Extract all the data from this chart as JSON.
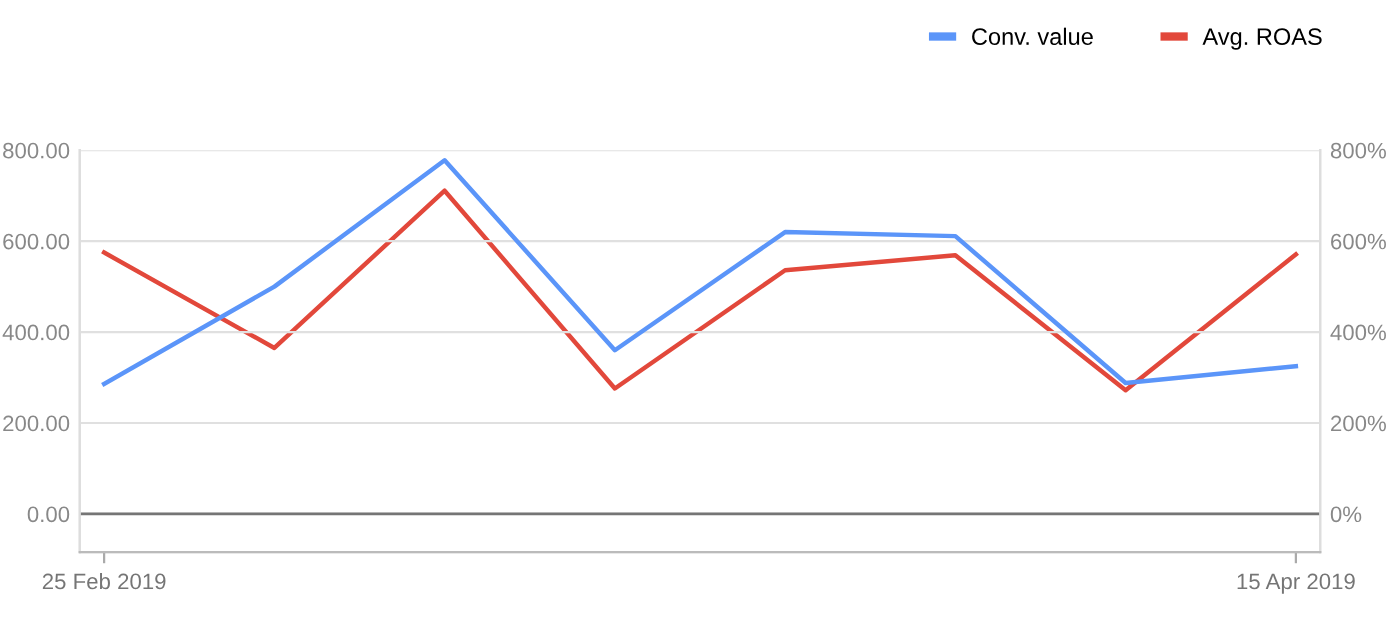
{
  "chart_data": {
    "type": "line",
    "x": [
      "2019-02-25",
      "2019-03-04",
      "2019-03-11",
      "2019-03-18",
      "2019-03-25",
      "2019-04-01",
      "2019-04-08",
      "2019-04-15"
    ],
    "series": [
      {
        "name": "Conv. value",
        "color": "#5b95f9",
        "values": [
          286,
          500,
          778,
          360,
          620,
          611,
          288,
          325
        ]
      },
      {
        "name": "Avg. ROAS",
        "color": "#e2483b",
        "axis": "y2",
        "values": [
          575,
          365,
          711,
          276,
          536,
          569,
          272,
          571
        ]
      }
    ],
    "xlim": [
      "2019-02-24",
      "2019-04-16"
    ],
    "xticks": [
      {
        "value": "2019-02-25",
        "label": "25 Feb 2019"
      },
      {
        "value": "2019-04-15",
        "label": "15 Apr 2019"
      }
    ],
    "ylim": [
      -84,
      800
    ],
    "yticks": [
      {
        "value": 0,
        "label": "0.00"
      },
      {
        "value": 200,
        "label": "200.00"
      },
      {
        "value": 400,
        "label": "400.00"
      },
      {
        "value": 600,
        "label": "600.00"
      },
      {
        "value": 800,
        "label": "800.00"
      }
    ],
    "y2lim": [
      -84,
      800
    ],
    "y2ticks": [
      {
        "value": 0,
        "label": "0%"
      },
      {
        "value": 200,
        "label": "200%"
      },
      {
        "value": 400,
        "label": "400%"
      },
      {
        "value": 600,
        "label": "600%"
      },
      {
        "value": 800,
        "label": "800%"
      }
    ],
    "ref_lines": [
      {
        "axis": "y",
        "value": 0,
        "color": "#757575"
      }
    ],
    "grid": "y",
    "legend": "top right",
    "marker": "none",
    "line_style": "solid"
  }
}
